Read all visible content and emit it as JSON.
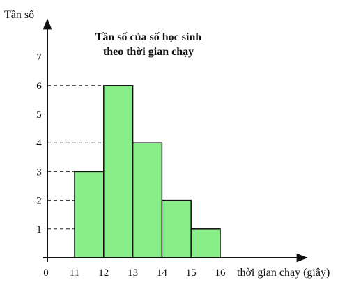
{
  "chart_data": {
    "type": "bar",
    "title": [
      "Tần số của số học sinh",
      "theo thời gian chạy"
    ],
    "xlabel": "thời gian chạy (giây)",
    "ylabel": "Tần số",
    "origin_label": "0",
    "x_ticks": [
      11,
      12,
      13,
      14,
      15,
      16
    ],
    "y_ticks": [
      1,
      2,
      3,
      4,
      5,
      6,
      7
    ],
    "bins": [
      {
        "from": 11,
        "to": 12,
        "value": 3
      },
      {
        "from": 12,
        "to": 13,
        "value": 6
      },
      {
        "from": 13,
        "to": 14,
        "value": 4
      },
      {
        "from": 14,
        "to": 15,
        "value": 2
      },
      {
        "from": 15,
        "to": 16,
        "value": 1
      }
    ],
    "dashed_guides": [
      1,
      2,
      3,
      4,
      6
    ],
    "ylim": [
      0,
      7
    ],
    "grid": false,
    "legend": "none",
    "colors": {
      "bar_fill": "#88ee88",
      "bar_stroke": "#111111",
      "axis": "#111111"
    }
  }
}
